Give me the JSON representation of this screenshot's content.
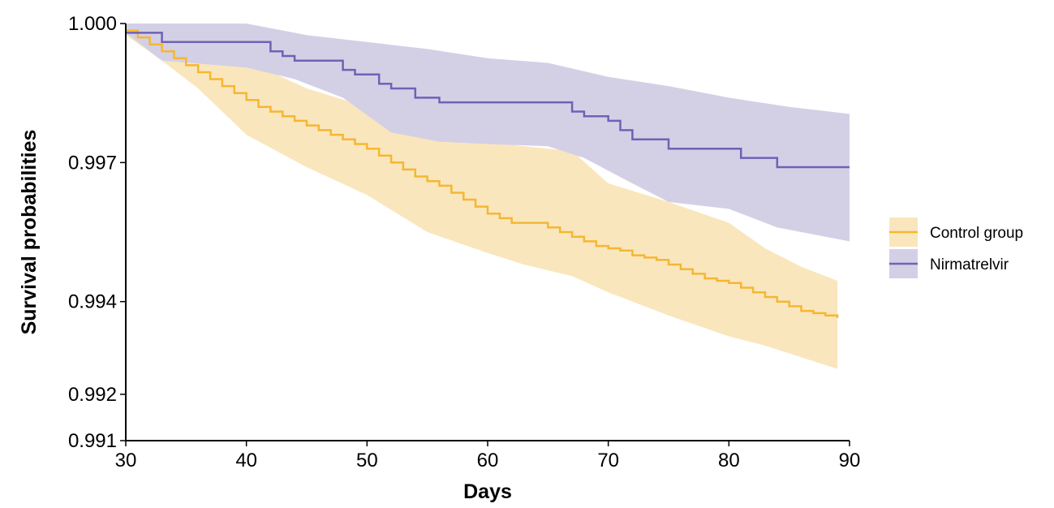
{
  "chart_data": {
    "type": "line",
    "title": "",
    "xlabel": "Days",
    "ylabel": "Survival probabilities",
    "xlim": [
      30,
      90
    ],
    "ylim": [
      0.991,
      1.0
    ],
    "x_ticks": [
      {
        "value": 30,
        "label": "30"
      },
      {
        "value": 40,
        "label": "40"
      },
      {
        "value": 50,
        "label": "50"
      },
      {
        "value": 60,
        "label": "60"
      },
      {
        "value": 70,
        "label": "70"
      },
      {
        "value": 80,
        "label": "80"
      },
      {
        "value": 90,
        "label": "90"
      }
    ],
    "y_ticks": [
      {
        "value": 0.991,
        "label": "0.991"
      },
      {
        "value": 0.992,
        "label": "0.992"
      },
      {
        "value": 0.994,
        "label": "0.994"
      },
      {
        "value": 0.997,
        "label": "0.997"
      },
      {
        "value": 1.0,
        "label": "1.000"
      }
    ],
    "grid": false,
    "legend_position": "right",
    "series": [
      {
        "name": "Control group",
        "color": "#f5b731",
        "band_color": "#fae6bd",
        "step": [
          [
            30,
            0.99985
          ],
          [
            31,
            0.9997
          ],
          [
            32,
            0.99955
          ],
          [
            33,
            0.9994
          ],
          [
            34,
            0.99925
          ],
          [
            35,
            0.9991
          ],
          [
            36,
            0.99895
          ],
          [
            37,
            0.9988
          ],
          [
            38,
            0.99865
          ],
          [
            39,
            0.9985
          ],
          [
            40,
            0.99835
          ],
          [
            41,
            0.9982
          ],
          [
            42,
            0.9981
          ],
          [
            43,
            0.998
          ],
          [
            44,
            0.9979
          ],
          [
            45,
            0.9978
          ],
          [
            46,
            0.9977
          ],
          [
            47,
            0.9976
          ],
          [
            48,
            0.9975
          ],
          [
            49,
            0.9974
          ],
          [
            50,
            0.9973
          ],
          [
            51,
            0.99715
          ],
          [
            52,
            0.997
          ],
          [
            53,
            0.99685
          ],
          [
            54,
            0.9967
          ],
          [
            55,
            0.9966
          ],
          [
            56,
            0.9965
          ],
          [
            57,
            0.99635
          ],
          [
            58,
            0.9962
          ],
          [
            59,
            0.99605
          ],
          [
            60,
            0.9959
          ],
          [
            61,
            0.9958
          ],
          [
            62,
            0.9957
          ],
          [
            63,
            0.9957
          ],
          [
            64,
            0.9957
          ],
          [
            65,
            0.9956
          ],
          [
            66,
            0.9955
          ],
          [
            67,
            0.9954
          ],
          [
            68,
            0.9953
          ],
          [
            69,
            0.9952
          ],
          [
            70,
            0.99515
          ],
          [
            71,
            0.9951
          ],
          [
            72,
            0.995
          ],
          [
            73,
            0.99495
          ],
          [
            74,
            0.9949
          ],
          [
            75,
            0.9948
          ],
          [
            76,
            0.9947
          ],
          [
            77,
            0.9946
          ],
          [
            78,
            0.9945
          ],
          [
            79,
            0.99445
          ],
          [
            80,
            0.9944
          ],
          [
            81,
            0.9943
          ],
          [
            82,
            0.9942
          ],
          [
            83,
            0.9941
          ],
          [
            84,
            0.994
          ],
          [
            85,
            0.9939
          ],
          [
            86,
            0.9938
          ],
          [
            87,
            0.99375
          ],
          [
            88,
            0.9937
          ],
          [
            89,
            0.99365
          ]
        ],
        "upper": [
          [
            30,
            1.0
          ],
          [
            33,
            0.99985
          ],
          [
            36,
            0.9995
          ],
          [
            40,
            0.9992
          ],
          [
            45,
            0.9986
          ],
          [
            50,
            0.9982
          ],
          [
            55,
            0.9978
          ],
          [
            60,
            0.99745
          ],
          [
            63,
            0.99735
          ],
          [
            67,
            0.99725
          ],
          [
            70,
            0.99655
          ],
          [
            75,
            0.99615
          ],
          [
            80,
            0.9957
          ],
          [
            83,
            0.99515
          ],
          [
            86,
            0.99475
          ],
          [
            89,
            0.99445
          ]
        ],
        "lower": [
          [
            30,
            0.99975
          ],
          [
            33,
            0.9992
          ],
          [
            36,
            0.9986
          ],
          [
            40,
            0.9976
          ],
          [
            45,
            0.9969
          ],
          [
            50,
            0.9963
          ],
          [
            55,
            0.9955
          ],
          [
            60,
            0.99505
          ],
          [
            63,
            0.9948
          ],
          [
            67,
            0.99455
          ],
          [
            70,
            0.9942
          ],
          [
            75,
            0.9937
          ],
          [
            80,
            0.99325
          ],
          [
            83,
            0.99305
          ],
          [
            86,
            0.9928
          ],
          [
            89,
            0.99255
          ]
        ]
      },
      {
        "name": "Nirmatrelvir",
        "color": "#6f62b5",
        "band_color": "#d3d0e6",
        "step": [
          [
            30,
            0.9998
          ],
          [
            33,
            0.9996
          ],
          [
            42,
            0.9994
          ],
          [
            43,
            0.9993
          ],
          [
            44,
            0.9992
          ],
          [
            48,
            0.999
          ],
          [
            49,
            0.9989
          ],
          [
            51,
            0.9987
          ],
          [
            52,
            0.9986
          ],
          [
            54,
            0.9984
          ],
          [
            56,
            0.9983
          ],
          [
            67,
            0.9981
          ],
          [
            68,
            0.998
          ],
          [
            70,
            0.9979
          ],
          [
            71,
            0.9977
          ],
          [
            72,
            0.9975
          ],
          [
            75,
            0.9973
          ],
          [
            81,
            0.9971
          ],
          [
            84,
            0.9969
          ],
          [
            90,
            0.9969
          ]
        ],
        "upper": [
          [
            30,
            1.0
          ],
          [
            40,
            1.0
          ],
          [
            45,
            0.99975
          ],
          [
            50,
            0.9996
          ],
          [
            55,
            0.99945
          ],
          [
            60,
            0.99925
          ],
          [
            65,
            0.99915
          ],
          [
            70,
            0.99885
          ],
          [
            75,
            0.99865
          ],
          [
            80,
            0.9984
          ],
          [
            85,
            0.9982
          ],
          [
            90,
            0.99805
          ]
        ],
        "lower": [
          [
            30,
            0.9998
          ],
          [
            33,
            0.9992
          ],
          [
            40,
            0.99905
          ],
          [
            44,
            0.9988
          ],
          [
            48,
            0.9984
          ],
          [
            52,
            0.99765
          ],
          [
            56,
            0.99745
          ],
          [
            60,
            0.9974
          ],
          [
            65,
            0.99735
          ],
          [
            68,
            0.9971
          ],
          [
            72,
            0.99655
          ],
          [
            75,
            0.99615
          ],
          [
            80,
            0.996
          ],
          [
            84,
            0.9956
          ],
          [
            90,
            0.9953
          ]
        ]
      }
    ]
  }
}
